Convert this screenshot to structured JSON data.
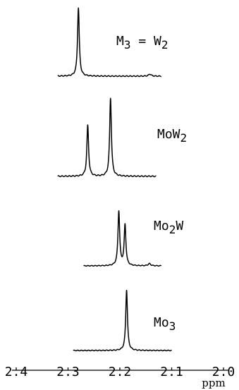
{
  "chart_data": {
    "type": "line",
    "xlabel": "ppm",
    "x_axis": {
      "range": [
        2.0,
        2.4
      ],
      "reversed": true,
      "ticks": [
        2.4,
        2.3,
        2.2,
        2.1,
        2.0
      ],
      "tick_labels": [
        "2.4",
        "2.3",
        "2.2",
        "2.1",
        "2.0"
      ]
    },
    "grid": false,
    "legend": "none",
    "series": [
      {
        "label_parts": [
          {
            "text": "M",
            "sub": false
          },
          {
            "text": "3",
            "sub": true
          },
          {
            "text": " = W",
            "sub": false
          },
          {
            "text": "2",
            "sub": true
          }
        ],
        "x_range": [
          2.12,
          2.32
        ],
        "peaks": [
          {
            "ppm": 2.28,
            "height": 1.0,
            "width": 0.002
          },
          {
            "ppm": 2.142,
            "height": 0.03,
            "width": 0.003
          }
        ]
      },
      {
        "label_parts": [
          {
            "text": "MoW",
            "sub": false
          },
          {
            "text": "2",
            "sub": true
          }
        ],
        "x_range": [
          2.13,
          2.32
        ],
        "peaks": [
          {
            "ppm": 2.262,
            "height": 0.65,
            "width": 0.002
          },
          {
            "ppm": 2.218,
            "height": 1.0,
            "width": 0.002
          }
        ]
      },
      {
        "label_parts": [
          {
            "text": "Mo",
            "sub": false
          },
          {
            "text": "2",
            "sub": true
          },
          {
            "text": "W",
            "sub": false
          }
        ],
        "x_range": [
          2.12,
          2.27
        ],
        "peaks": [
          {
            "ppm": 2.202,
            "height": 1.0,
            "width": 0.002
          },
          {
            "ppm": 2.19,
            "height": 0.75,
            "width": 0.002
          },
          {
            "ppm": 2.143,
            "height": 0.04,
            "width": 0.003
          }
        ]
      },
      {
        "label_parts": [
          {
            "text": "Mo",
            "sub": false
          },
          {
            "text": "3",
            "sub": true
          }
        ],
        "x_range": [
          2.1,
          2.29
        ],
        "peaks": [
          {
            "ppm": 2.187,
            "height": 1.0,
            "width": 0.002
          }
        ]
      }
    ]
  }
}
